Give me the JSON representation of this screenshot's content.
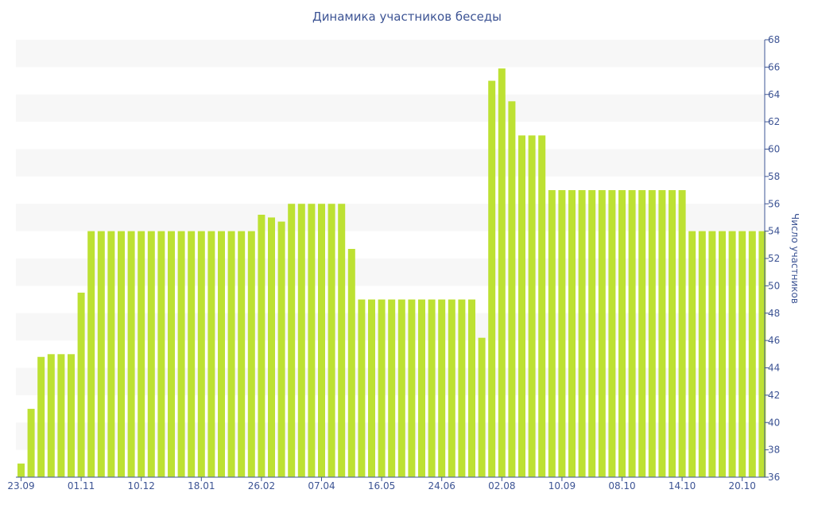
{
  "chart_data": {
    "type": "bar",
    "title": "Динамика участников беседы",
    "xlabel": "",
    "ylabel": "Число участников",
    "ylim": [
      36,
      68
    ],
    "yticks": [
      36,
      38,
      40,
      42,
      44,
      46,
      48,
      50,
      52,
      54,
      56,
      58,
      60,
      62,
      64,
      66,
      68
    ],
    "y_axis_side": "right",
    "x_tick_labels": [
      "23.09",
      "01.11",
      "10.12",
      "18.01",
      "26.02",
      "07.04",
      "16.05",
      "24.06",
      "02.08",
      "10.09",
      "08.10",
      "14.10",
      "20.10"
    ],
    "x_tick_bar_index": [
      0,
      6,
      12,
      18,
      24,
      30,
      36,
      42,
      48,
      54,
      60,
      66,
      72
    ],
    "grid": "horizontal alternating bands",
    "colors": {
      "bar": "#bde133",
      "band": "#f7f7f7",
      "text": "#3d5494",
      "axis": "#3d5494"
    },
    "values": [
      37,
      41,
      44.8,
      45,
      45,
      45,
      49.5,
      54,
      54,
      54,
      54,
      54,
      54,
      54,
      54,
      54,
      54,
      54,
      54,
      54,
      54,
      54,
      54,
      54,
      55.2,
      55,
      54.7,
      56,
      56,
      56,
      56,
      56,
      56,
      52.7,
      49,
      49,
      49,
      49,
      49,
      49,
      49,
      49,
      49,
      49,
      49,
      49,
      46.2,
      65,
      65.9,
      63.5,
      61,
      61,
      61,
      57,
      57,
      57,
      57,
      57,
      57,
      57,
      57,
      57,
      57,
      57,
      57,
      57,
      57,
      54,
      54,
      54,
      54,
      54,
      54,
      54,
      54
    ]
  }
}
